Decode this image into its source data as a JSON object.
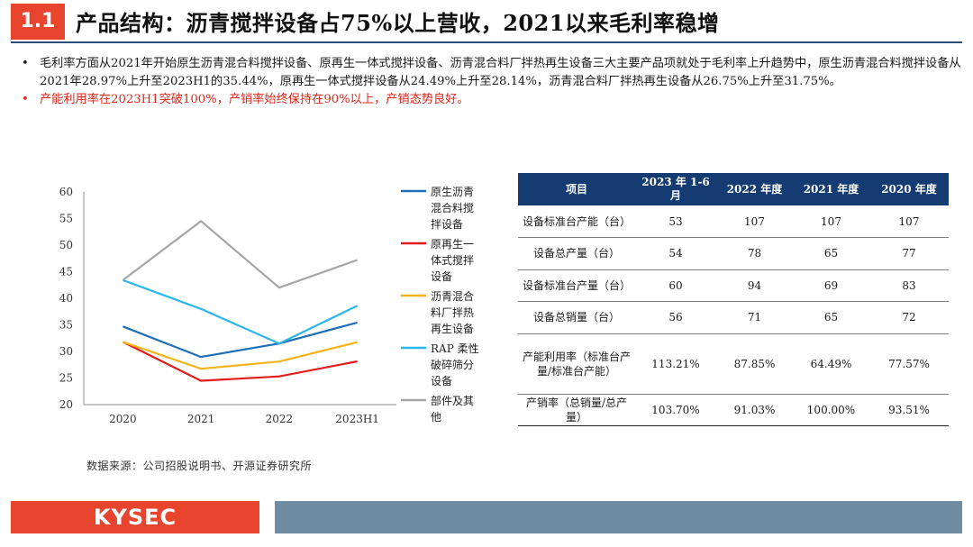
{
  "header": {
    "section_number": "1.1",
    "title": "产品结构：沥青搅拌设备占75%以上营收，2021以来毛利率稳增"
  },
  "bullets": [
    "毛利率方面从2021年开始原生沥青混合料搅拌设备、原再生一体式搅拌设备、沥青混合料厂拌热再生设备三大主要产品项就处于毛利率上升趋势中，原生沥青混合料搅拌设备从2021年28.97%上升至2023H1的35.44%，原再生一体式搅拌设备从24.49%上升至28.14%，沥青混合料厂拌热再生设备从26.75%上升至31.75%。",
    "产能利用率在2023H1突破100%，产销率始终保持在90%以上，产销态势良好。"
  ],
  "chart_data": {
    "type": "line",
    "categories": [
      "2020",
      "2021",
      "2022",
      "2023H1"
    ],
    "ylim": [
      20,
      60
    ],
    "yticks": [
      "20",
      "25",
      "30",
      "35",
      "40",
      "45",
      "50",
      "55",
      "60"
    ],
    "grid": false,
    "legend_position": "right",
    "series": [
      {
        "name": "原生沥青混合料搅拌设备",
        "legend_lines": [
          "原生沥青",
          "混合料搅",
          "拌设备"
        ],
        "color": "#1f6fb8",
        "values": [
          34.7,
          28.97,
          31.5,
          35.44
        ]
      },
      {
        "name": "原再生一体式搅拌设备",
        "legend_lines": [
          "原再生一",
          "体式搅拌",
          "设备"
        ],
        "color": "#e31b1b",
        "values": [
          31.8,
          24.49,
          25.3,
          28.14
        ]
      },
      {
        "name": "沥青混合料厂拌热再生设备",
        "legend_lines": [
          "沥青混合",
          "料厂拌热",
          "再生设备"
        ],
        "color": "#f5b51a",
        "values": [
          31.8,
          26.75,
          28.1,
          31.75
        ]
      },
      {
        "name": "RAP柔性破碎筛分设备",
        "legend_lines": [
          "RAP 柔性",
          "破碎筛分",
          "设备"
        ],
        "color": "#29b6e8",
        "values": [
          43.4,
          38.0,
          31.5,
          38.6
        ]
      },
      {
        "name": "部件及其他",
        "legend_lines": [
          "部件及其",
          "他"
        ],
        "color": "#a6a6a6",
        "values": [
          43.4,
          54.5,
          42.0,
          47.2
        ]
      }
    ]
  },
  "table": {
    "headers": [
      "项目",
      "2023 年 1-6月",
      "2022 年度",
      "2021 年度",
      "2020 年度"
    ],
    "rows": [
      {
        "label": "设备标准台产能（台）",
        "values": [
          "53",
          "107",
          "107",
          "107"
        ]
      },
      {
        "label": "设备总产量（台）",
        "values": [
          "54",
          "78",
          "65",
          "77"
        ]
      },
      {
        "label": "设备标准台产量（台）",
        "values": [
          "60",
          "94",
          "69",
          "83"
        ]
      },
      {
        "label": "设备总销量（台）",
        "values": [
          "56",
          "71",
          "65",
          "72"
        ]
      },
      {
        "label": "产能利用率（标准台产量/标准台产能）",
        "values": [
          "113.21%",
          "87.85%",
          "64.49%",
          "77.57%"
        ]
      },
      {
        "label": "产销率（总销量/总产量）",
        "values": [
          "103.70%",
          "91.03%",
          "100.00%",
          "93.51%"
        ]
      }
    ]
  },
  "source": "数据来源：公司招股说明书、开源证券研究所",
  "footer": {
    "logo_text": "KYSEC"
  },
  "colors": {
    "accent_red": "#e8442e",
    "header_navy": "#143c73",
    "footer_gray_blue": "#6f8ca2"
  }
}
